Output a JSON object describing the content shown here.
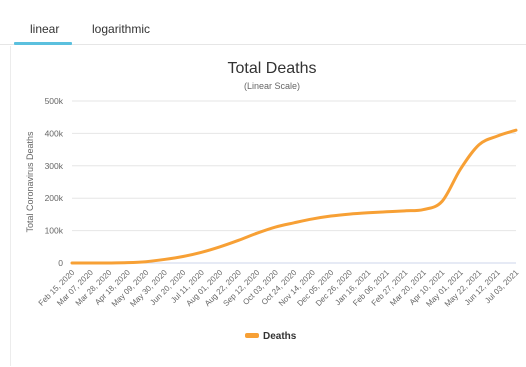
{
  "tabs": [
    {
      "label": "linear",
      "active": true
    },
    {
      "label": "logarithmic",
      "active": false
    }
  ],
  "colors": {
    "series": "#f7a035",
    "tab_accent": "#5bc0de",
    "grid": "#e6e6e6"
  },
  "chart_data": {
    "type": "line",
    "title": "Total Deaths",
    "subtitle": "(Linear Scale)",
    "xlabel": "",
    "ylabel": "Total Coronavirus Deaths",
    "ylim": [
      0,
      500000
    ],
    "yticks": [
      0,
      100000,
      200000,
      300000,
      400000,
      500000
    ],
    "ytick_labels": [
      "0",
      "100k",
      "200k",
      "300k",
      "400k",
      "500k"
    ],
    "grid": true,
    "legend_position": "bottom-center",
    "x_labels": [
      "Feb 15, 2020",
      "Mar 07, 2020",
      "Mar 28, 2020",
      "Apr 18, 2020",
      "May 09, 2020",
      "May 30, 2020",
      "Jun 20, 2020",
      "Jul 11, 2020",
      "Aug 01, 2020",
      "Aug 22, 2020",
      "Sep 12, 2020",
      "Oct 03, 2020",
      "Oct 24, 2020",
      "Nov 14, 2020",
      "Dec 05, 2020",
      "Dec 26, 2020",
      "Jan 16, 2021",
      "Feb 06, 2021",
      "Feb 27, 2021",
      "Mar 20, 2021",
      "Apr 10, 2021",
      "May 01, 2021",
      "May 22, 2021",
      "Jun 12, 2021",
      "Jul 03, 2021"
    ],
    "series": [
      {
        "name": "Deaths",
        "values": [
          0,
          0,
          100,
          1000,
          4000,
          11000,
          20000,
          33000,
          50000,
          70000,
          92000,
          111000,
          124000,
          136000,
          145000,
          151000,
          155000,
          158000,
          161000,
          165000,
          190000,
          290000,
          365000,
          392000,
          410000
        ]
      }
    ]
  }
}
